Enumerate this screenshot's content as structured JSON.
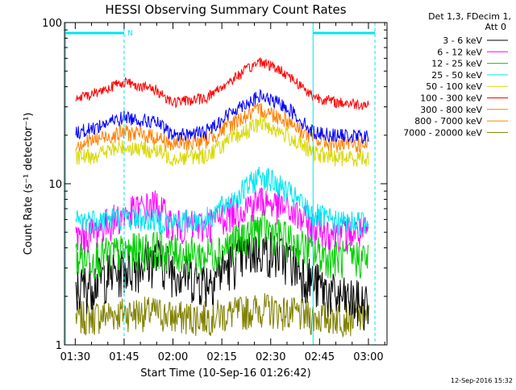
{
  "chart_data": {
    "type": "line",
    "title": "HESSI Observing Summary Count Rates",
    "xlabel": "Start Time (10-Sep-16 01:26:42)",
    "ylabel": "Count Rate (s⁻¹ detector⁻¹)",
    "ylog": true,
    "ylim": [
      1,
      100
    ],
    "xlim": [
      "01:26:42",
      "03:05:42"
    ],
    "yticks": [
      "1",
      "10",
      "100"
    ],
    "xticks": [
      "01:30",
      "01:45",
      "02:00",
      "02:15",
      "02:30",
      "02:45",
      "03:00"
    ],
    "grid": false,
    "legend_position": "right",
    "legend_header": [
      "Det 1,3, FDecim 1,",
      "Att 0"
    ],
    "attenuator_marker_label": "N",
    "footer_date": "12-Sep-2016 15:32",
    "x": [
      "01:27",
      "01:35",
      "01:45",
      "01:55",
      "02:00",
      "02:10",
      "02:20",
      "02:27",
      "02:35",
      "02:43",
      "02:50",
      "03:00",
      "03:05"
    ],
    "series": [
      {
        "name": "3 - 6 keV",
        "color": "#000000",
        "values": [
          2.0,
          2.5,
          3.0,
          3.5,
          3.0,
          2.5,
          3.5,
          4.0,
          3.5,
          2.5,
          2.0,
          1.8,
          1.8
        ]
      },
      {
        "name": "6 - 12 keV",
        "color": "#ff00ff",
        "values": [
          4.5,
          5.0,
          6.5,
          7.5,
          5.5,
          5.5,
          7.0,
          8.0,
          7.0,
          5.5,
          5.0,
          5.0,
          4.8
        ]
      },
      {
        "name": "12 - 25 keV",
        "color": "#00cc00",
        "values": [
          3.5,
          3.5,
          3.8,
          4.0,
          3.8,
          3.6,
          4.5,
          5.5,
          4.5,
          3.8,
          3.5,
          3.5,
          3.5
        ]
      },
      {
        "name": "25 - 50 keV",
        "color": "#00e5ee",
        "values": [
          5.8,
          6.0,
          6.2,
          6.0,
          5.8,
          6.0,
          8.5,
          11.5,
          9.0,
          6.5,
          5.8,
          5.8,
          5.8
        ]
      },
      {
        "name": "50 - 100 keV",
        "color": "#d8d800",
        "values": [
          14,
          15,
          17,
          16,
          14.5,
          15,
          20,
          24,
          20,
          15.5,
          14.5,
          14.5,
          14.5
        ]
      },
      {
        "name": "100 - 300 keV",
        "color": "#ff0000",
        "values": [
          32,
          36,
          43,
          38,
          32,
          34,
          47,
          58,
          48,
          35,
          32,
          31,
          31
        ]
      },
      {
        "name": "300 - 800 keV",
        "color": "#ff8000",
        "values": [
          17,
          18.5,
          21,
          19.5,
          17.5,
          18.5,
          25,
          29,
          25,
          19,
          17.5,
          17.5,
          17.5
        ]
      },
      {
        "name": "800 - 7000 keV",
        "color": "#ff8000",
        "values": [
          17,
          18.5,
          21,
          19.5,
          17.5,
          18.5,
          25,
          29,
          25,
          19,
          17.5,
          17.5,
          17.5
        ]
      },
      {
        "name": "7000 - 20000 keV",
        "color": "#808000",
        "values": [
          1.5,
          1.5,
          1.6,
          1.6,
          1.5,
          1.5,
          1.6,
          1.7,
          1.6,
          1.5,
          1.5,
          1.5,
          1.5
        ]
      }
    ],
    "blue_unlabeled_series": {
      "color": "#0000ff",
      "values": [
        20,
        22,
        26,
        24,
        20,
        21,
        30,
        35,
        30,
        21,
        20,
        19.5,
        19.5
      ]
    },
    "saa_intervals": [
      [
        "01:27",
        "01:45"
      ],
      [
        "02:43",
        "03:02"
      ]
    ]
  }
}
